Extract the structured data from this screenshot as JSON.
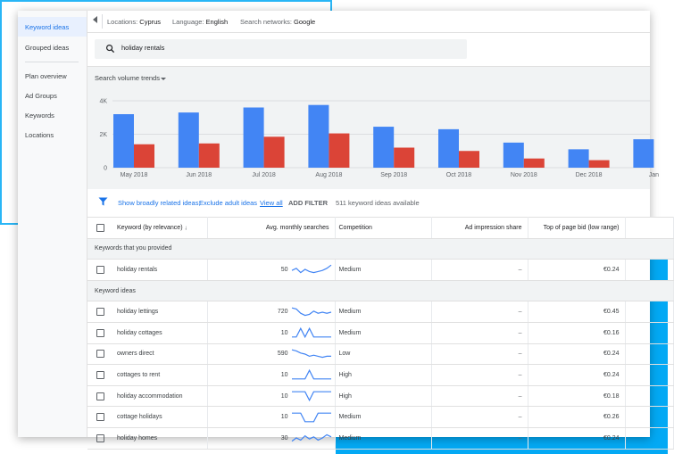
{
  "sidebar": {
    "items": [
      {
        "label": "Keyword ideas",
        "active": true
      },
      {
        "label": "Grouped ideas",
        "active": false
      },
      {
        "label": "Plan overview",
        "active": false
      },
      {
        "label": "Ad Groups",
        "active": false
      },
      {
        "label": "Keywords",
        "active": false
      },
      {
        "label": "Locations",
        "active": false
      }
    ]
  },
  "topbar": {
    "locations_label": "Locations:",
    "locations_value": "Cyprus",
    "language_label": "Language:",
    "language_value": "English",
    "networks_label": "Search networks:",
    "networks_value": "Google"
  },
  "search": {
    "value": "holiday rentals",
    "icon": "search-icon"
  },
  "trends": {
    "label": "Search volume trends"
  },
  "chart_data": {
    "type": "bar",
    "categories": [
      "May 2018",
      "Jun 2018",
      "Jul 2018",
      "Aug 2018",
      "Sep 2018",
      "Oct 2018",
      "Nov 2018",
      "Dec 2018",
      "Jan"
    ],
    "series": [
      {
        "values": [
          3200,
          3300,
          3600,
          3750,
          2450,
          2300,
          1500,
          1100,
          1700
        ],
        "color": "#4285f4"
      },
      {
        "values": [
          1400,
          1450,
          1850,
          2050,
          1200,
          1000,
          550,
          450,
          0
        ],
        "color": "#db4437"
      }
    ],
    "yticks": [
      "4K",
      "2K",
      "0"
    ],
    "yticks_values": [
      4000,
      2000,
      0
    ],
    "ylim": [
      0,
      4000
    ],
    "grid": true
  },
  "filterbar": {
    "related": "Show broadly related ideas;",
    "exclude": "Exclude adult ideas",
    "view_all": "View all",
    "add_filter": "ADD FILTER",
    "count": "511 keyword ideas available"
  },
  "table": {
    "headers": {
      "keyword": "Keyword (by relevance)",
      "sort_arrow": "↓",
      "searches": "Avg. monthly searches",
      "competition": "Competition",
      "impression": "Ad impression share",
      "bid": "Top of page bid (low range)"
    },
    "group_provided": "Keywords that you provided",
    "group_ideas": "Keyword ideas",
    "provided": [
      {
        "keyword": "holiday rentals",
        "searches": "50",
        "competition": "Medium",
        "impression": "–",
        "bid": "€0.24",
        "trend": [
          0.4,
          0.6,
          0.2,
          0.5,
          0.3,
          0.2,
          0.3,
          0.4,
          0.6,
          0.9
        ]
      }
    ],
    "ideas": [
      {
        "keyword": "holiday lettings",
        "searches": "720",
        "competition": "Medium",
        "impression": "–",
        "bid": "€0.45",
        "trend": [
          0.9,
          0.8,
          0.4,
          0.2,
          0.3,
          0.6,
          0.4,
          0.5,
          0.4,
          0.5
        ]
      },
      {
        "keyword": "holiday cottages",
        "searches": "10",
        "competition": "Medium",
        "impression": "–",
        "bid": "€0.16",
        "trend": [
          0.1,
          0.1,
          0.9,
          0.1,
          0.9,
          0.1,
          0.1,
          0.1,
          0.1,
          0.1
        ]
      },
      {
        "keyword": "owners direct",
        "searches": "590",
        "competition": "Low",
        "impression": "–",
        "bid": "€0.24",
        "trend": [
          0.9,
          0.8,
          0.6,
          0.5,
          0.3,
          0.4,
          0.3,
          0.2,
          0.3,
          0.3
        ]
      },
      {
        "keyword": "cottages to rent",
        "searches": "10",
        "competition": "High",
        "impression": "–",
        "bid": "€0.24",
        "trend": [
          0.1,
          0.1,
          0.1,
          0.1,
          0.9,
          0.1,
          0.1,
          0.1,
          0.1,
          0.1
        ]
      },
      {
        "keyword": "holiday accommodation",
        "searches": "10",
        "competition": "High",
        "impression": "–",
        "bid": "€0.18",
        "trend": [
          0.9,
          0.9,
          0.9,
          0.9,
          0.1,
          0.9,
          0.9,
          0.9,
          0.9,
          0.9
        ]
      },
      {
        "keyword": "cottage holidays",
        "searches": "10",
        "competition": "Medium",
        "impression": "–",
        "bid": "€0.26",
        "trend": [
          0.9,
          0.9,
          0.9,
          0.1,
          0.1,
          0.1,
          0.9,
          0.9,
          0.9,
          0.9
        ]
      },
      {
        "keyword": "holiday homes",
        "searches": "30",
        "competition": "Medium",
        "impression": "–",
        "bid": "€0.24",
        "trend": [
          0.2,
          0.5,
          0.3,
          0.7,
          0.4,
          0.6,
          0.3,
          0.5,
          0.8,
          0.6
        ]
      }
    ]
  }
}
